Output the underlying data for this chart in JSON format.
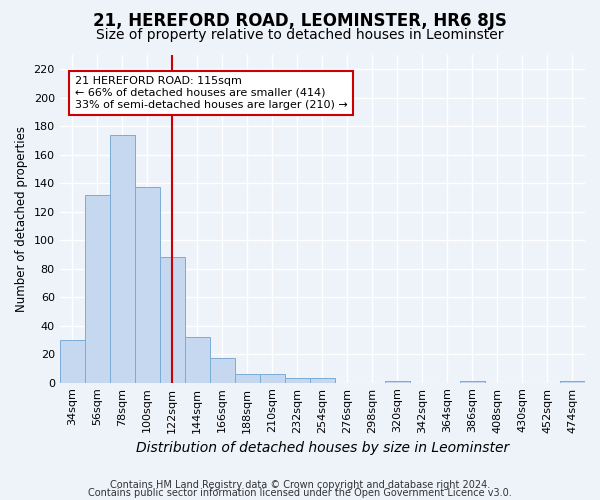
{
  "title1": "21, HEREFORD ROAD, LEOMINSTER, HR6 8JS",
  "title2": "Size of property relative to detached houses in Leominster",
  "xlabel": "Distribution of detached houses by size in Leominster",
  "ylabel": "Number of detached properties",
  "bar_labels": [
    "34sqm",
    "56sqm",
    "78sqm",
    "100sqm",
    "122sqm",
    "144sqm",
    "166sqm",
    "188sqm",
    "210sqm",
    "232sqm",
    "254sqm",
    "276sqm",
    "298sqm",
    "320sqm",
    "342sqm",
    "364sqm",
    "386sqm",
    "408sqm",
    "430sqm",
    "452sqm",
    "474sqm"
  ],
  "bar_values": [
    30,
    132,
    174,
    137,
    88,
    32,
    17,
    6,
    6,
    3,
    3,
    0,
    0,
    1,
    0,
    0,
    1,
    0,
    0,
    0,
    1
  ],
  "bar_color": "#c5d8f0",
  "bar_edge_color": "#7aacd6",
  "vline_color": "#cc0000",
  "annotation_line1": "21 HEREFORD ROAD: 115sqm",
  "annotation_line2": "← 66% of detached houses are smaller (414)",
  "annotation_line3": "33% of semi-detached houses are larger (210) →",
  "annotation_box_edge": "#cc0000",
  "ylim": [
    0,
    230
  ],
  "yticks": [
    0,
    20,
    40,
    60,
    80,
    100,
    120,
    140,
    160,
    180,
    200,
    220
  ],
  "footnote1": "Contains HM Land Registry data © Crown copyright and database right 2024.",
  "footnote2": "Contains public sector information licensed under the Open Government Licence v3.0.",
  "bg_color": "#eef2f9",
  "grid_color": "#ffffff",
  "title1_fontsize": 12,
  "title2_fontsize": 10,
  "xlabel_fontsize": 10,
  "ylabel_fontsize": 8.5,
  "tick_fontsize": 8,
  "annot_fontsize": 8,
  "footnote_fontsize": 7
}
